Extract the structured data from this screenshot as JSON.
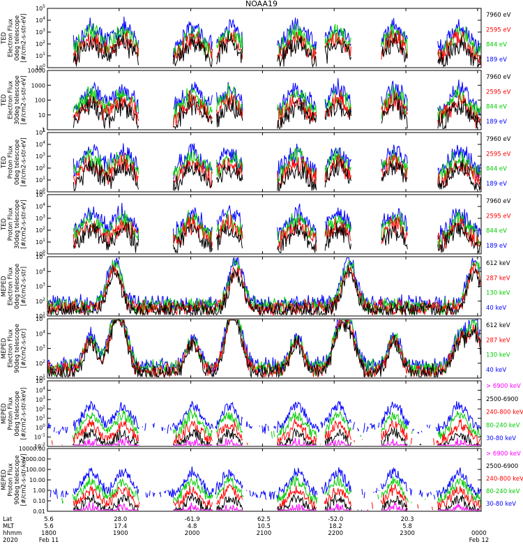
{
  "chart_data": {
    "type": "line",
    "title": "NOAA19",
    "x_axis": {
      "ticks": [
        {
          "lat": "5.6",
          "mlt": "5.6",
          "hhmm": "1800",
          "date": "Feb 11"
        },
        {
          "lat": "28.0",
          "mlt": "17.4",
          "hhmm": "1900",
          "date": ""
        },
        {
          "lat": "-61.9",
          "mlt": "4.8",
          "hhmm": "2000",
          "date": ""
        },
        {
          "lat": "62.5",
          "mlt": "10.5",
          "hhmm": "2100",
          "date": ""
        },
        {
          "lat": "-52.0",
          "mlt": "18.2",
          "hhmm": "2200",
          "date": ""
        },
        {
          "lat": "20.3",
          "mlt": "5.8",
          "hhmm": "2300",
          "date": ""
        },
        {
          "lat": "",
          "mlt": "",
          "hhmm": "0000",
          "date": "Feb 12"
        }
      ],
      "row_labels": [
        "Lat",
        "MLT",
        "hhmm",
        "2020"
      ]
    },
    "panels": [
      {
        "ylabel": [
          "TED",
          "Electron Flux",
          "0deg telescope",
          "[#/cm2-s-str-eV]"
        ],
        "yticks": [
          "10^0",
          "10^1",
          "10^2",
          "10^3",
          "10^4",
          "10^5"
        ],
        "ylim_exp": [
          0,
          5
        ],
        "legend": [
          {
            "label": "7960 eV",
            "color": "#000000"
          },
          {
            "label": "2595 eV",
            "color": "#ff0000"
          },
          {
            "label": "844 eV",
            "color": "#00cc00"
          },
          {
            "label": "189 eV",
            "color": "#0000ff"
          }
        ]
      },
      {
        "ylabel": [
          "TED",
          "Electron Flux",
          "30deg telescope",
          "[#/cm2-s-str-eV]"
        ],
        "yticks": [
          "1",
          "10",
          "100",
          "1000",
          "10000"
        ],
        "ylim_exp": [
          0,
          4
        ],
        "legend": [
          {
            "label": "7960 eV",
            "color": "#000000"
          },
          {
            "label": "2595 eV",
            "color": "#ff0000"
          },
          {
            "label": "844 eV",
            "color": "#00cc00"
          },
          {
            "label": "189 eV",
            "color": "#0000ff"
          }
        ]
      },
      {
        "ylabel": [
          "TED",
          "Proton Flux",
          "0deg telescope",
          "[#/cm2-s-str-eV]"
        ],
        "yticks": [
          "10^0",
          "10^1",
          "10^2",
          "10^3",
          "10^4",
          "10^5"
        ],
        "ylim_exp": [
          0,
          5
        ],
        "legend": [
          {
            "label": "7960 eV",
            "color": "#000000"
          },
          {
            "label": "2595 eV",
            "color": "#ff0000"
          },
          {
            "label": "844 eV",
            "color": "#00cc00"
          },
          {
            "label": "189 eV",
            "color": "#0000ff"
          }
        ]
      },
      {
        "ylabel": [
          "TED",
          "Proton Flux",
          "30deg telescope",
          "[#/cm2-s-str-eV]"
        ],
        "yticks": [
          "10^0",
          "10^1",
          "10^2",
          "10^3",
          "10^4",
          "10^5"
        ],
        "ylim_exp": [
          0,
          5
        ],
        "legend": [
          {
            "label": "7960 eV",
            "color": "#000000"
          },
          {
            "label": "2595 eV",
            "color": "#ff0000"
          },
          {
            "label": "844 eV",
            "color": "#00cc00"
          },
          {
            "label": "189 eV",
            "color": "#0000ff"
          }
        ]
      },
      {
        "ylabel": [
          "MEPED",
          "Electron Flux",
          "0deg telescope",
          "[#/cm2-s-str]"
        ],
        "yticks": [
          "10^1",
          "10^2",
          "10^3",
          "10^4",
          "10^5"
        ],
        "ylim_exp": [
          1,
          5
        ],
        "legend": [
          {
            "label": "612 keV",
            "color": "#000000"
          },
          {
            "label": "287 keV",
            "color": "#ff0000"
          },
          {
            "label": "130 keV",
            "color": "#00cc00"
          },
          {
            "label": "40 keV",
            "color": "#0000ff"
          }
        ]
      },
      {
        "ylabel": [
          "MEPED",
          "Electron Flux",
          "90deg telescope",
          "[#/cm2-s-str]"
        ],
        "yticks": [
          "10^1",
          "10^2",
          "10^3",
          "10^4",
          "10^5"
        ],
        "ylim_exp": [
          1,
          5
        ],
        "legend": [
          {
            "label": "612 keV",
            "color": "#000000"
          },
          {
            "label": "287 keV",
            "color": "#ff0000"
          },
          {
            "label": "130 keV",
            "color": "#00cc00"
          },
          {
            "label": "40 keV",
            "color": "#0000ff"
          }
        ]
      },
      {
        "ylabel": [
          "MEPED",
          "Proton Flux",
          "0deg telescope",
          "[#/cm2-s-str-keV]"
        ],
        "yticks": [
          "10^-2",
          "10^-1",
          "10^0",
          "10^1",
          "10^2",
          "10^3",
          "10^4",
          "10^5"
        ],
        "ylim_exp": [
          -2,
          5
        ],
        "legend": [
          {
            "label": "> 6900 keV",
            "color": "#ff00ff"
          },
          {
            "label": "2500-6900",
            "color": "#000000"
          },
          {
            "label": "240-800 keV",
            "color": "#ff0000"
          },
          {
            "label": "80-240 keV",
            "color": "#00cc00"
          },
          {
            "label": "30-80 keV",
            "color": "#0000ff"
          }
        ]
      },
      {
        "ylabel": [
          "MEPED",
          "Proton Flux",
          "90deg telescope",
          "[#/cm2-s-str-keV]"
        ],
        "yticks": [
          "0.01",
          "0.10",
          "1.00",
          "10.00",
          "100.00",
          "1000.00",
          "10000.00"
        ],
        "ylim_exp": [
          -2,
          4
        ],
        "legend": [
          {
            "label": "> 6900 keV",
            "color": "#ff00ff"
          },
          {
            "label": "2500-6900",
            "color": "#000000"
          },
          {
            "label": "240-800 keV",
            "color": "#ff0000"
          },
          {
            "label": "80-240 keV",
            "color": "#00cc00"
          },
          {
            "label": "30-80 keV",
            "color": "#0000ff"
          }
        ]
      }
    ]
  }
}
